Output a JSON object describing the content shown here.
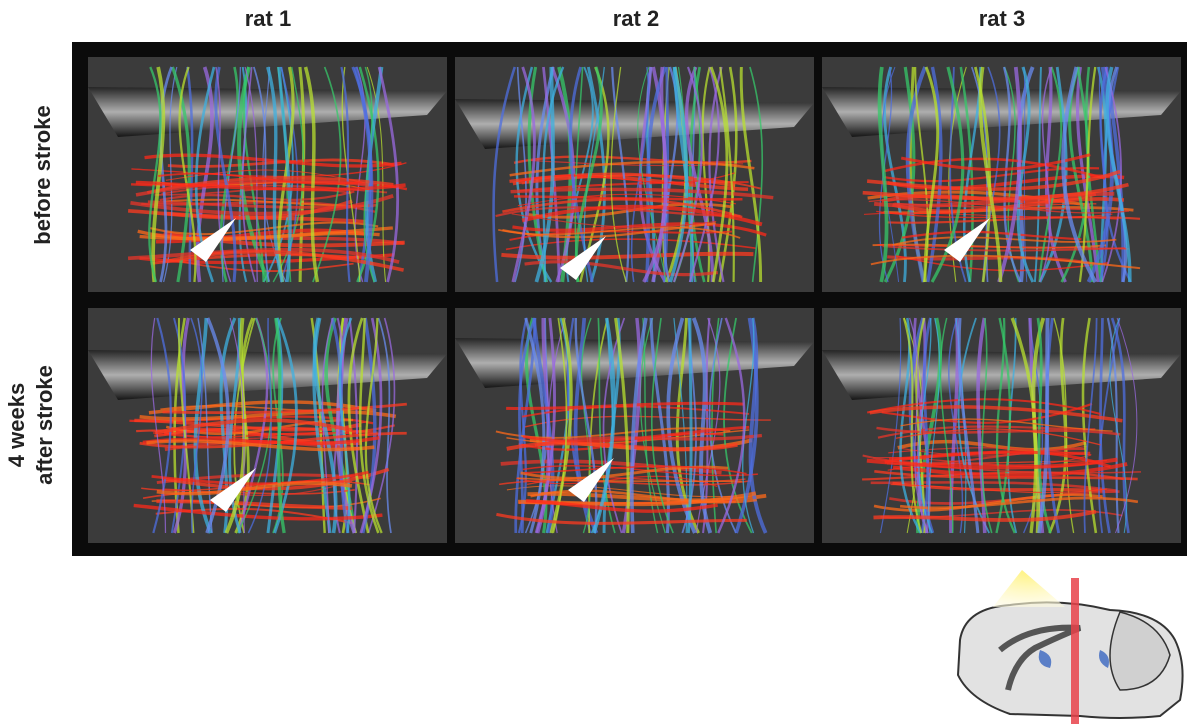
{
  "columns": [
    "rat 1",
    "rat 2",
    "rat 3"
  ],
  "rows": [
    [
      "before stroke"
    ],
    [
      "4 weeks",
      "after stroke"
    ]
  ]
}
